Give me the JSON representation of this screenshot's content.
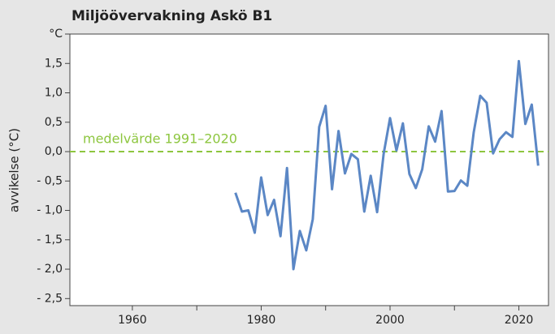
{
  "chart_data": {
    "type": "line",
    "title": "Miljöövervakning Askö B1",
    "y_label": "avvikelse (°C)",
    "x": [
      1976,
      1977,
      1978,
      1979,
      1980,
      1981,
      1982,
      1983,
      1984,
      1985,
      1986,
      1987,
      1988,
      1989,
      1990,
      1991,
      1992,
      1993,
      1994,
      1995,
      1996,
      1997,
      1998,
      1999,
      2000,
      2001,
      2002,
      2003,
      2004,
      2005,
      2006,
      2007,
      2008,
      2009,
      2010,
      2011,
      2012,
      2013,
      2014,
      2015,
      2016,
      2017,
      2018,
      2019,
      2020,
      2021,
      2022,
      2023
    ],
    "values": [
      -0.7,
      -1.02,
      -1.0,
      -1.38,
      -0.44,
      -1.08,
      -0.82,
      -1.44,
      -0.28,
      -2.0,
      -1.35,
      -1.68,
      -1.15,
      0.42,
      0.78,
      -0.64,
      0.35,
      -0.37,
      -0.04,
      -0.13,
      -1.02,
      -0.41,
      -1.03,
      -0.04,
      0.57,
      0.02,
      0.48,
      -0.38,
      -0.62,
      -0.3,
      0.43,
      0.17,
      0.69,
      -0.68,
      -0.67,
      -0.49,
      -0.58,
      0.33,
      0.95,
      0.83,
      -0.03,
      0.21,
      0.33,
      0.25,
      1.54,
      0.47,
      0.8,
      -0.24
    ],
    "color": "#5b87c5",
    "xlim": [
      1950.3,
      2024.6
    ],
    "xticks": [
      1960,
      1980,
      2000,
      2020
    ],
    "minor_xticks": [
      1970,
      1990,
      2010
    ],
    "ylim": [
      -2.62,
      2.0
    ],
    "yticks": [
      {
        "value": 2.0,
        "label": "°C"
      },
      {
        "value": 1.5,
        "label": "1,5"
      },
      {
        "value": 1.0,
        "label": "1,0"
      },
      {
        "value": 0.5,
        "label": "0,5"
      },
      {
        "value": 0,
        "label": "0,0"
      },
      {
        "value": -0.5,
        "label": "- 0,5"
      },
      {
        "value": -1.0,
        "label": "- 1,0"
      },
      {
        "value": -1.5,
        "label": "- 1,5"
      },
      {
        "value": -2.0,
        "label": "- 2,0"
      },
      {
        "value": -2.5,
        "label": "- 2,5"
      }
    ],
    "reference_line": {
      "value": 0,
      "label": "medelvärde 1991–2020",
      "color": "#8dc63f"
    }
  }
}
